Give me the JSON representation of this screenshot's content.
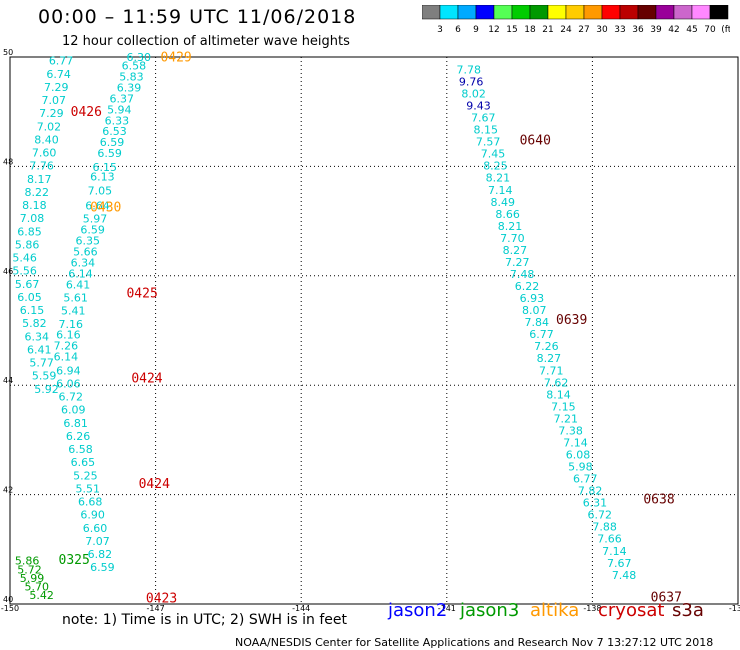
{
  "header": {
    "title": "00:00 – 11:59 UTC 11/06/2018",
    "subtitle": "12 hour collection of altimeter wave heights"
  },
  "colorbar": {
    "colors": [
      "#7f7f7f",
      "#00e5ff",
      "#00aaff",
      "#0000ff",
      "#55ff55",
      "#00cc00",
      "#009900",
      "#ffff00",
      "#ffcc00",
      "#ff9900",
      "#ff0000",
      "#bb0000",
      "#660000",
      "#990099",
      "#cc66cc",
      "#ff88ff",
      "#000000"
    ],
    "labels": [
      "3",
      "6",
      "9",
      "12",
      "15",
      "18",
      "21",
      "24",
      "27",
      "30",
      "33",
      "36",
      "39",
      "42",
      "45",
      "70",
      "(ft)"
    ]
  },
  "chart_data": {
    "type": "scatter",
    "xlim": [
      -150,
      -135
    ],
    "ylim": [
      40,
      50
    ],
    "x_ticks": [
      "-150",
      "-147",
      "-144",
      "-141",
      "-138",
      "-135"
    ],
    "y_ticks": [
      "50",
      "48",
      "46",
      "44",
      "42",
      "40"
    ],
    "grid": true,
    "series": [
      {
        "name": "jason2",
        "color": "#0000ff",
        "points": []
      },
      {
        "name": "jason3",
        "color": "#009900",
        "points": [
          {
            "lon": -149.9,
            "lat": 40.72,
            "v": "5.86"
          },
          {
            "lon": -149.85,
            "lat": 40.56,
            "v": "5.72"
          },
          {
            "lon": -149.8,
            "lat": 40.4,
            "v": "5.99"
          },
          {
            "lon": -149.7,
            "lat": 40.25,
            "v": "5.70"
          },
          {
            "lon": -149.6,
            "lat": 40.09,
            "v": "5.42"
          }
        ]
      },
      {
        "name": "altika",
        "color": "#ff9900",
        "points": []
      },
      {
        "name": "cryosat",
        "color": "#cc0000",
        "points": []
      },
      {
        "name": "s3a",
        "color": "#660000",
        "points": []
      },
      {
        "name": "track-west",
        "color": "#00cccc",
        "points": [
          {
            "lon": -147.6,
            "lat": 49.93,
            "v": "6.30"
          },
          {
            "lon": -147.7,
            "lat": 49.77,
            "v": "6.58"
          },
          {
            "lon": -147.75,
            "lat": 49.57,
            "v": "5.83"
          },
          {
            "lon": -147.8,
            "lat": 49.37,
            "v": "6.39"
          },
          {
            "lon": -147.95,
            "lat": 49.17,
            "v": "6.37"
          },
          {
            "lon": -148.0,
            "lat": 48.97,
            "v": "5.94"
          },
          {
            "lon": -148.05,
            "lat": 48.77,
            "v": "6.33"
          },
          {
            "lon": -148.1,
            "lat": 48.57,
            "v": "6.53"
          },
          {
            "lon": -148.15,
            "lat": 48.37,
            "v": "6.59"
          },
          {
            "lon": -148.2,
            "lat": 48.17,
            "v": "6.59"
          },
          {
            "lon": -148.3,
            "lat": 47.92,
            "v": "6.15"
          },
          {
            "lon": -148.35,
            "lat": 47.74,
            "v": "6.13"
          },
          {
            "lon": -148.4,
            "lat": 47.49,
            "v": "7.05"
          },
          {
            "lon": -148.45,
            "lat": 47.21,
            "v": "6.64"
          },
          {
            "lon": -148.5,
            "lat": 46.97,
            "v": "5.97"
          },
          {
            "lon": -148.55,
            "lat": 46.77,
            "v": "6.59"
          },
          {
            "lon": -148.65,
            "lat": 46.57,
            "v": "6.35"
          },
          {
            "lon": -148.7,
            "lat": 46.37,
            "v": "5.66"
          },
          {
            "lon": -148.75,
            "lat": 46.17,
            "v": "6.34"
          },
          {
            "lon": -148.8,
            "lat": 45.97,
            "v": "6.14"
          },
          {
            "lon": -148.85,
            "lat": 45.77,
            "v": "6.41"
          },
          {
            "lon": -148.9,
            "lat": 45.53,
            "v": "5.61"
          },
          {
            "lon": -148.95,
            "lat": 45.29,
            "v": "5.41"
          },
          {
            "lon": -149.0,
            "lat": 45.05,
            "v": "7.16"
          },
          {
            "lon": -149.05,
            "lat": 44.85,
            "v": "6.16"
          },
          {
            "lon": -149.1,
            "lat": 44.65,
            "v": "7.26"
          },
          {
            "lon": -149.1,
            "lat": 44.45,
            "v": "6.14"
          },
          {
            "lon": -149.05,
            "lat": 44.2,
            "v": "6.94"
          },
          {
            "lon": -149.05,
            "lat": 43.96,
            "v": "6.06"
          },
          {
            "lon": -149.0,
            "lat": 43.72,
            "v": "6.72"
          },
          {
            "lon": -148.95,
            "lat": 43.48,
            "v": "6.09"
          },
          {
            "lon": -148.9,
            "lat": 43.24,
            "v": "6.81"
          },
          {
            "lon": -148.85,
            "lat": 43.0,
            "v": "6.26"
          },
          {
            "lon": -148.8,
            "lat": 42.76,
            "v": "6.58"
          },
          {
            "lon": -148.75,
            "lat": 42.52,
            "v": "6.65"
          },
          {
            "lon": -148.7,
            "lat": 42.28,
            "v": "5.25"
          },
          {
            "lon": -148.65,
            "lat": 42.04,
            "v": "5.51"
          },
          {
            "lon": -148.6,
            "lat": 41.8,
            "v": "6.68"
          },
          {
            "lon": -148.55,
            "lat": 41.56,
            "v": "6.90"
          },
          {
            "lon": -148.5,
            "lat": 41.32,
            "v": "6.60"
          },
          {
            "lon": -148.45,
            "lat": 41.08,
            "v": "7.07"
          },
          {
            "lon": -148.4,
            "lat": 40.84,
            "v": "6.82"
          },
          {
            "lon": -148.35,
            "lat": 40.6,
            "v": "6.59"
          },
          {
            "lon": -149.2,
            "lat": 49.86,
            "v": "6.77"
          },
          {
            "lon": -149.25,
            "lat": 49.62,
            "v": "6.74"
          },
          {
            "lon": -149.3,
            "lat": 49.38,
            "v": "7.29"
          },
          {
            "lon": -149.35,
            "lat": 49.14,
            "v": "7.07"
          },
          {
            "lon": -149.4,
            "lat": 48.9,
            "v": "7.29"
          },
          {
            "lon": -149.45,
            "lat": 48.66,
            "v": "7.02"
          },
          {
            "lon": -149.5,
            "lat": 48.42,
            "v": "8.40"
          },
          {
            "lon": -149.55,
            "lat": 48.18,
            "v": "7.60"
          },
          {
            "lon": -149.6,
            "lat": 47.94,
            "v": "7.76"
          },
          {
            "lon": -149.65,
            "lat": 47.7,
            "v": "8.17"
          },
          {
            "lon": -149.7,
            "lat": 47.46,
            "v": "8.22"
          },
          {
            "lon": -149.75,
            "lat": 47.22,
            "v": "8.18"
          },
          {
            "lon": -149.8,
            "lat": 46.98,
            "v": "7.08"
          },
          {
            "lon": -149.85,
            "lat": 46.74,
            "v": "6.85"
          },
          {
            "lon": -149.9,
            "lat": 46.5,
            "v": "5.86"
          },
          {
            "lon": -149.95,
            "lat": 46.26,
            "v": "5.46"
          },
          {
            "lon": -149.95,
            "lat": 46.02,
            "v": "5.56"
          },
          {
            "lon": -149.9,
            "lat": 45.78,
            "v": "5.67"
          },
          {
            "lon": -149.85,
            "lat": 45.54,
            "v": "6.05"
          },
          {
            "lon": -149.8,
            "lat": 45.3,
            "v": "6.15"
          },
          {
            "lon": -149.75,
            "lat": 45.06,
            "v": "5.82"
          },
          {
            "lon": -149.7,
            "lat": 44.82,
            "v": "6.34"
          },
          {
            "lon": -149.65,
            "lat": 44.58,
            "v": "6.41"
          },
          {
            "lon": -149.6,
            "lat": 44.34,
            "v": "5.77"
          },
          {
            "lon": -149.55,
            "lat": 44.1,
            "v": "5.59"
          },
          {
            "lon": -149.5,
            "lat": 43.86,
            "v": "5.92"
          }
        ]
      },
      {
        "name": "track-east",
        "color": "#00cccc",
        "points": [
          {
            "lon": -140.8,
            "lat": 49.7,
            "v": "7.78"
          },
          {
            "lon": -140.75,
            "lat": 49.48,
            "v": "9.76",
            "color": "#0000aa"
          },
          {
            "lon": -140.7,
            "lat": 49.26,
            "v": "8.02"
          },
          {
            "lon": -140.6,
            "lat": 49.04,
            "v": "9.43",
            "color": "#0000aa"
          },
          {
            "lon": -140.5,
            "lat": 48.82,
            "v": "7.67"
          },
          {
            "lon": -140.45,
            "lat": 48.6,
            "v": "8.15"
          },
          {
            "lon": -140.4,
            "lat": 48.38,
            "v": "7.57"
          },
          {
            "lon": -140.3,
            "lat": 48.16,
            "v": "7.45"
          },
          {
            "lon": -140.25,
            "lat": 47.94,
            "v": "8.25"
          },
          {
            "lon": -140.2,
            "lat": 47.72,
            "v": "8.21"
          },
          {
            "lon": -140.15,
            "lat": 47.5,
            "v": "7.14"
          },
          {
            "lon": -140.1,
            "lat": 47.28,
            "v": "8.49"
          },
          {
            "lon": -140.0,
            "lat": 47.06,
            "v": "8.66"
          },
          {
            "lon": -139.95,
            "lat": 46.84,
            "v": "8.21"
          },
          {
            "lon": -139.9,
            "lat": 46.62,
            "v": "7.70"
          },
          {
            "lon": -139.85,
            "lat": 46.4,
            "v": "8.27"
          },
          {
            "lon": -139.8,
            "lat": 46.18,
            "v": "7.27"
          },
          {
            "lon": -139.7,
            "lat": 45.96,
            "v": "7.48"
          },
          {
            "lon": -139.6,
            "lat": 45.74,
            "v": "6.22"
          },
          {
            "lon": -139.5,
            "lat": 45.52,
            "v": "6.93"
          },
          {
            "lon": -139.45,
            "lat": 45.3,
            "v": "8.07"
          },
          {
            "lon": -139.4,
            "lat": 45.08,
            "v": "7.84"
          },
          {
            "lon": -139.3,
            "lat": 44.86,
            "v": "6.77"
          },
          {
            "lon": -139.2,
            "lat": 44.64,
            "v": "7.26"
          },
          {
            "lon": -139.15,
            "lat": 44.42,
            "v": "8.27"
          },
          {
            "lon": -139.1,
            "lat": 44.2,
            "v": "7.71"
          },
          {
            "lon": -139.0,
            "lat": 43.98,
            "v": "7.62"
          },
          {
            "lon": -138.95,
            "lat": 43.76,
            "v": "8.14"
          },
          {
            "lon": -138.85,
            "lat": 43.54,
            "v": "7.15"
          },
          {
            "lon": -138.8,
            "lat": 43.32,
            "v": "7.21"
          },
          {
            "lon": -138.7,
            "lat": 43.1,
            "v": "7.38"
          },
          {
            "lon": -138.6,
            "lat": 42.88,
            "v": "7.14"
          },
          {
            "lon": -138.55,
            "lat": 42.66,
            "v": "6.08"
          },
          {
            "lon": -138.5,
            "lat": 42.44,
            "v": "5.98"
          },
          {
            "lon": -138.4,
            "lat": 42.22,
            "v": "6.77"
          },
          {
            "lon": -138.3,
            "lat": 42.0,
            "v": "7.82"
          },
          {
            "lon": -138.2,
            "lat": 41.78,
            "v": "6.31"
          },
          {
            "lon": -138.1,
            "lat": 41.56,
            "v": "6.72"
          },
          {
            "lon": -138.0,
            "lat": 41.34,
            "v": "7.88"
          },
          {
            "lon": -137.9,
            "lat": 41.12,
            "v": "7.66"
          },
          {
            "lon": -137.8,
            "lat": 40.9,
            "v": "7.14"
          },
          {
            "lon": -137.7,
            "lat": 40.68,
            "v": "7.67"
          },
          {
            "lon": -137.6,
            "lat": 40.46,
            "v": "7.48"
          }
        ]
      }
    ],
    "time_labels": [
      {
        "text": "0429",
        "lon": -146.9,
        "lat": 49.92,
        "color": "#ff9900"
      },
      {
        "text": "0426",
        "lon": -148.75,
        "lat": 48.92,
        "color": "#cc0000"
      },
      {
        "text": "0430",
        "lon": -148.35,
        "lat": 47.18,
        "color": "#ff9900"
      },
      {
        "text": "0425",
        "lon": -147.6,
        "lat": 45.6,
        "color": "#cc0000"
      },
      {
        "text": "0424",
        "lon": -147.5,
        "lat": 44.05,
        "color": "#cc0000"
      },
      {
        "text": "0424",
        "lon": -147.35,
        "lat": 42.12,
        "color": "#cc0000"
      },
      {
        "text": "0325",
        "lon": -149.0,
        "lat": 40.73,
        "color": "#009900"
      },
      {
        "text": "0423",
        "lon": -147.2,
        "lat": 40.03,
        "color": "#cc0000"
      },
      {
        "text": "0640",
        "lon": -139.5,
        "lat": 48.4,
        "color": "#660000"
      },
      {
        "text": "0639",
        "lon": -138.75,
        "lat": 45.12,
        "color": "#660000"
      },
      {
        "text": "0638",
        "lon": -136.95,
        "lat": 41.84,
        "color": "#660000"
      },
      {
        "text": "0637",
        "lon": -136.8,
        "lat": 40.05,
        "color": "#660000"
      }
    ]
  },
  "footer": {
    "note": "note: 1) Time is in UTC; 2) SWH is in feet",
    "legend": [
      {
        "label": "jason2",
        "color": "#0000ff"
      },
      {
        "label": "jason3",
        "color": "#009900"
      },
      {
        "label": "altika",
        "color": "#ff9900"
      },
      {
        "label": "cryosat",
        "color": "#cc0000"
      },
      {
        "label": "s3a",
        "color": "#660000"
      }
    ],
    "credit": "NOAA/NESDIS Center for Satellite Applications and Research    Nov  7 13:27:12 UTC 2018"
  }
}
